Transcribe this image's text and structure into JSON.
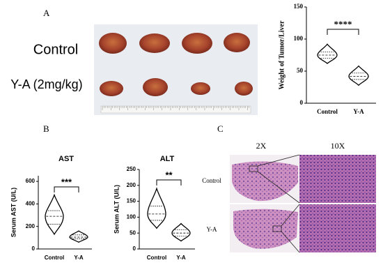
{
  "panel_labels": [
    "A",
    "B",
    "C"
  ],
  "photo": {
    "rows": [
      "Control",
      "Y-A (2mg/kg)"
    ]
  },
  "histology": {
    "columns": [
      "2X",
      "10X"
    ],
    "rows": [
      "Control",
      "Y-A"
    ]
  },
  "chart_data": [
    {
      "type": "violin",
      "y_label": "Weight of Tumor/Liver",
      "categories": [
        "Control",
        "Y-A"
      ],
      "stats": [
        {
          "min": 62,
          "q1": 70,
          "median": 75,
          "q3": 80,
          "max": 92
        },
        {
          "min": 28,
          "q1": 37,
          "median": 42,
          "q3": 47,
          "max": 58
        }
      ],
      "annotation": "****",
      "color": "#000000",
      "ylim": [
        0,
        150
      ],
      "yticks": [
        0,
        50,
        100,
        150
      ]
    },
    {
      "type": "violin",
      "title": "AST",
      "y_label": "Serum AST (U/L)",
      "categories": [
        "Control",
        "Y-A"
      ],
      "stats": [
        {
          "min": 130,
          "q1": 220,
          "median": 290,
          "q3": 340,
          "max": 480
        },
        {
          "min": 60,
          "q1": 90,
          "median": 105,
          "q3": 125,
          "max": 160
        }
      ],
      "annotation": "***",
      "color": "#000000",
      "ylim": [
        0,
        650
      ],
      "yticks": [
        0,
        200,
        400,
        600
      ]
    },
    {
      "type": "violin",
      "title": "ALT",
      "y_label": "Serum ALT (U/L)",
      "categories": [
        "Control",
        "Y-A"
      ],
      "stats": [
        {
          "min": 65,
          "q1": 90,
          "median": 110,
          "q3": 135,
          "max": 190
        },
        {
          "min": 25,
          "q1": 40,
          "median": 50,
          "q3": 60,
          "max": 80
        }
      ],
      "annotation": "**",
      "color": "#000000",
      "ylim": [
        0,
        250
      ],
      "yticks": [
        0,
        50,
        100,
        150,
        200,
        250
      ]
    }
  ]
}
